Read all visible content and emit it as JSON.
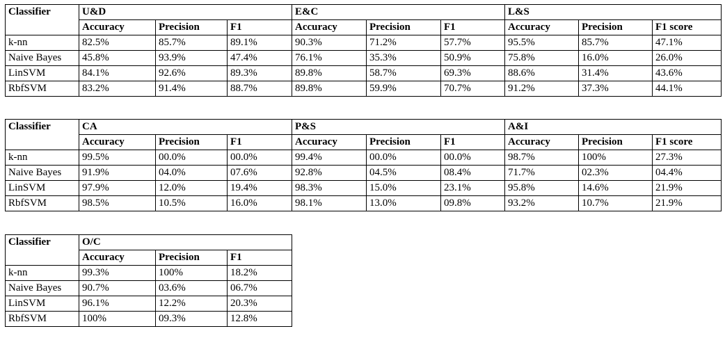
{
  "tables": [
    {
      "corner_header": "Classifier",
      "groups": [
        {
          "name": "U&D",
          "metrics": [
            "Accuracy",
            "Precision",
            "F1"
          ]
        },
        {
          "name": "E&C",
          "metrics": [
            "Accuracy",
            "Precision",
            "F1"
          ]
        },
        {
          "name": "L&S",
          "metrics": [
            "Accuracy",
            "Precision",
            "F1 score"
          ]
        }
      ],
      "rows": [
        {
          "classifier": "k-nn",
          "values": [
            "82.5%",
            "85.7%",
            "89.1%",
            "90.3%",
            "71.2%",
            "57.7%",
            "95.5%",
            "85.7%",
            "47.1%"
          ]
        },
        {
          "classifier": "Naive Bayes",
          "values": [
            "45.8%",
            "93.9%",
            "47.4%",
            "76.1%",
            "35.3%",
            "50.9%",
            "75.8%",
            "16.0%",
            "26.0%"
          ]
        },
        {
          "classifier": "LinSVM",
          "values": [
            "84.1%",
            "92.6%",
            "89.3%",
            "89.8%",
            "58.7%",
            "69.3%",
            "88.6%",
            "31.4%",
            "43.6%"
          ]
        },
        {
          "classifier": "RbfSVM",
          "values": [
            "83.2%",
            "91.4%",
            "88.7%",
            "89.8%",
            "59.9%",
            "70.7%",
            "91.2%",
            "37.3%",
            "44.1%"
          ]
        }
      ]
    },
    {
      "corner_header": "Classifier",
      "groups": [
        {
          "name": "CA",
          "metrics": [
            "Accuracy",
            "Precision",
            "F1"
          ]
        },
        {
          "name": "P&S",
          "metrics": [
            "Accuracy",
            "Precision",
            "F1"
          ]
        },
        {
          "name": "A&I",
          "metrics": [
            "Accuracy",
            "Precision",
            "F1 score"
          ]
        }
      ],
      "rows": [
        {
          "classifier": "k-nn",
          "values": [
            "99.5%",
            "00.0%",
            "00.0%",
            "99.4%",
            "00.0%",
            "00.0%",
            "98.7%",
            "100%",
            "27.3%"
          ]
        },
        {
          "classifier": "Naive Bayes",
          "values": [
            "91.9%",
            "04.0%",
            "07.6%",
            "92.8%",
            "04.5%",
            "08.4%",
            "71.7%",
            "02.3%",
            "04.4%"
          ]
        },
        {
          "classifier": "LinSVM",
          "values": [
            "97.9%",
            "12.0%",
            "19.4%",
            "98.3%",
            "15.0%",
            "23.1%",
            "95.8%",
            "14.6%",
            "21.9%"
          ]
        },
        {
          "classifier": "RbfSVM",
          "values": [
            "98.5%",
            "10.5%",
            "16.0%",
            "98.1%",
            "13.0%",
            "09.8%",
            "93.2%",
            "10.7%",
            "21.9%"
          ]
        }
      ]
    },
    {
      "corner_header": "Classifier",
      "groups": [
        {
          "name": "O/C",
          "metrics": [
            "Accuracy",
            "Precision",
            "F1"
          ]
        }
      ],
      "rows": [
        {
          "classifier": "k-nn",
          "values": [
            "99.3%",
            "100%",
            "18.2%"
          ]
        },
        {
          "classifier": "Naive Bayes",
          "values": [
            "90.7%",
            "03.6%",
            "06.7%"
          ]
        },
        {
          "classifier": "LinSVM",
          "values": [
            "96.1%",
            "12.2%",
            "20.3%"
          ]
        },
        {
          "classifier": "RbfSVM",
          "values": [
            "100%",
            "09.3%",
            "12.8%"
          ]
        }
      ]
    }
  ]
}
